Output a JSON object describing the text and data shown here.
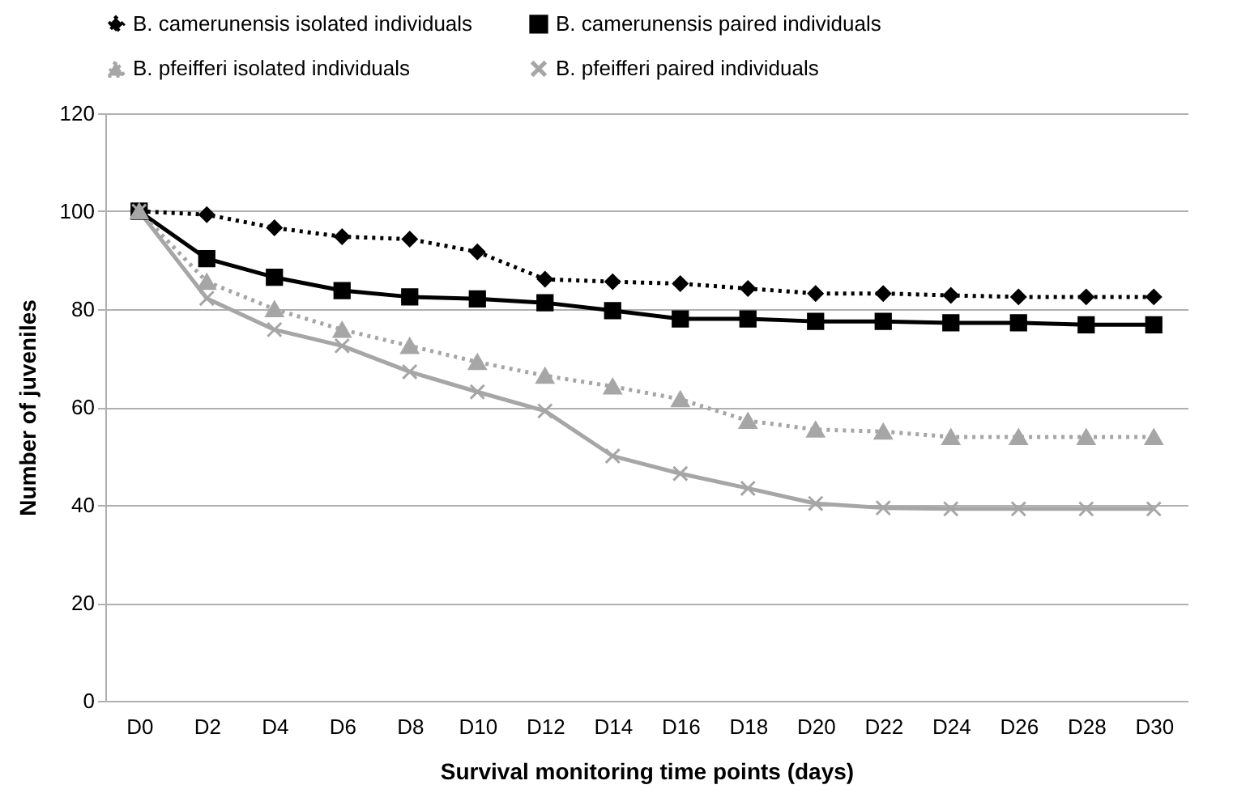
{
  "chart_data": {
    "type": "line",
    "xlabel": "Survival monitoring time points (days)",
    "ylabel": "Number of juveniles",
    "categories": [
      "D0",
      "D2",
      "D4",
      "D6",
      "D8",
      "D10",
      "D12",
      "D14",
      "D16",
      "D18",
      "D20",
      "D22",
      "D24",
      "D26",
      "D28",
      "D30"
    ],
    "series": [
      {
        "name": "B. camerunensis isolated individuals",
        "color": "#000000",
        "marker": "diamond",
        "line_style": "dotted",
        "values": [
          100,
          99.3,
          96.6,
          94.8,
          94.3,
          91.7,
          86.1,
          85.6,
          85.2,
          84.2,
          83.2,
          83.2,
          82.8,
          82.5,
          82.5,
          82.5
        ]
      },
      {
        "name": "B. camerunensis paired individuals",
        "color": "#000000",
        "marker": "square",
        "line_style": "solid",
        "values": [
          100,
          90.3,
          86.5,
          83.8,
          82.5,
          82.1,
          81.3,
          79.7,
          78,
          78,
          77.5,
          77.5,
          77.2,
          77.2,
          76.8,
          76.8
        ]
      },
      {
        "name": "B. pfeifferi isolated individuals",
        "color": "#a6a6a6",
        "marker": "triangle",
        "line_style": "dotted",
        "values": [
          100,
          85.6,
          80,
          75.8,
          72.5,
          69.2,
          66.4,
          64.2,
          61.6,
          57.2,
          55.4,
          55,
          53.9,
          53.9,
          53.9,
          53.9
        ]
      },
      {
        "name": "B. pfeifferi paired individuals",
        "color": "#a6a6a6",
        "marker": "cross",
        "line_style": "solid",
        "values": [
          100,
          82.2,
          75.8,
          72.5,
          67.2,
          63.1,
          59.2,
          50,
          46.4,
          43.4,
          40.3,
          39.4,
          39.2,
          39.2,
          39.2,
          39.2
        ]
      }
    ],
    "ylim": [
      0,
      120
    ],
    "yticks": [
      0,
      20,
      40,
      60,
      80,
      100,
      120
    ],
    "grid": "y",
    "legend": "top"
  }
}
